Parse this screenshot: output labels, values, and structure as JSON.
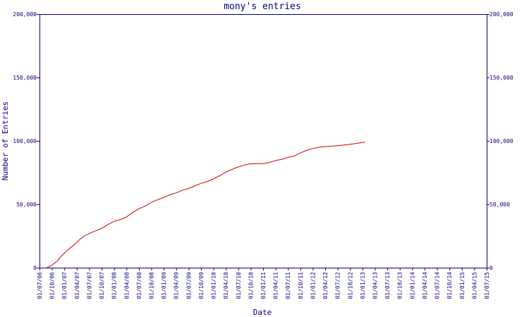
{
  "chart_data": {
    "type": "line",
    "title": "mony's entries",
    "xlabel": "Date",
    "ylabel": "Number of Entries",
    "ylim": [
      0,
      200000
    ],
    "y_ticks": [
      0,
      50000,
      100000,
      150000,
      200000
    ],
    "y_tick_labels": [
      "0",
      "50,000",
      "100,000",
      "150,000",
      "200,000"
    ],
    "y_axis_right": true,
    "grid": false,
    "x_tick_labels": [
      "01/07/06",
      "01/10/06",
      "01/01/07",
      "01/04/07",
      "01/07/07",
      "01/10/07",
      "01/01/08",
      "01/04/08",
      "01/07/08",
      "01/10/08",
      "01/01/09",
      "01/04/09",
      "01/07/09",
      "01/10/09",
      "01/01/10",
      "01/04/10",
      "01/07/10",
      "01/10/10",
      "01/01/11",
      "01/04/11",
      "01/07/11",
      "01/10/11",
      "01/01/12",
      "01/04/12",
      "01/07/12",
      "01/10/12",
      "01/01/13",
      "01/04/13",
      "01/07/13",
      "01/10/13",
      "01/01/14",
      "01/04/14",
      "01/07/14",
      "01/10/14",
      "01/01/15",
      "01/04/15",
      "01/07/15"
    ],
    "colors": {
      "axis": "#000080",
      "line": "#cc0000",
      "text": "#000080"
    },
    "series": [
      {
        "values": [
          [
            0.6,
            0
          ],
          [
            1.0,
            2000
          ],
          [
            1.4,
            5000
          ],
          [
            1.8,
            9500
          ],
          [
            2.2,
            13500
          ],
          [
            2.6,
            16500
          ],
          [
            2.9,
            19000
          ],
          [
            3.2,
            22000
          ],
          [
            3.6,
            25000
          ],
          [
            4.0,
            27000
          ],
          [
            4.5,
            29000
          ],
          [
            5.0,
            31000
          ],
          [
            5.5,
            34000
          ],
          [
            6.0,
            36500
          ],
          [
            6.5,
            38000
          ],
          [
            7.0,
            40000
          ],
          [
            7.5,
            43500
          ],
          [
            8.0,
            46500
          ],
          [
            8.5,
            48500
          ],
          [
            9.0,
            51500
          ],
          [
            9.5,
            53500
          ],
          [
            10.0,
            55500
          ],
          [
            10.5,
            57500
          ],
          [
            11.0,
            59000
          ],
          [
            11.5,
            61000
          ],
          [
            12.0,
            62500
          ],
          [
            12.5,
            64500
          ],
          [
            13.0,
            66500
          ],
          [
            13.5,
            68000
          ],
          [
            14.0,
            70000
          ],
          [
            14.5,
            72500
          ],
          [
            15.0,
            75500
          ],
          [
            15.5,
            77500
          ],
          [
            16.0,
            79500
          ],
          [
            16.5,
            81000
          ],
          [
            17.0,
            82000
          ],
          [
            17.5,
            82000
          ],
          [
            18.0,
            82000
          ],
          [
            18.5,
            83000
          ],
          [
            19.0,
            84500
          ],
          [
            19.5,
            85500
          ],
          [
            20.0,
            87000
          ],
          [
            20.5,
            88000
          ],
          [
            21.0,
            90500
          ],
          [
            21.5,
            92500
          ],
          [
            22.0,
            94000
          ],
          [
            22.5,
            95000
          ],
          [
            23.0,
            95500
          ],
          [
            23.5,
            95800
          ],
          [
            24.0,
            96200
          ],
          [
            24.5,
            96700
          ],
          [
            25.0,
            97300
          ],
          [
            25.5,
            98000
          ],
          [
            26.0,
            98700
          ],
          [
            26.2,
            99000
          ]
        ]
      }
    ]
  }
}
